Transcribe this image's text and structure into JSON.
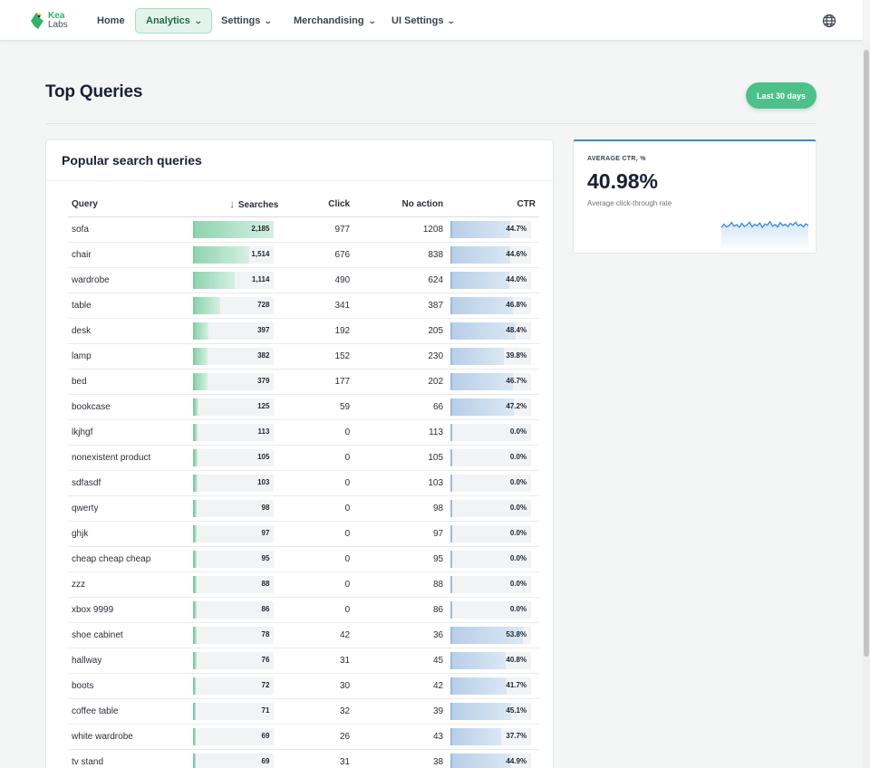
{
  "brand": {
    "line1": "Kea",
    "line2": "Labs"
  },
  "nav": {
    "home": "Home",
    "analytics": "Analytics",
    "settings": "Settings",
    "merchandising": "Merchandising",
    "ui_settings": "UI Settings"
  },
  "page": {
    "title": "Top Queries",
    "date_range": "Last 30 days"
  },
  "table_card": {
    "title": "Popular search queries",
    "headers": {
      "query": "Query",
      "searches": "Searches",
      "click": "Click",
      "no_action": "No action",
      "ctr": "CTR"
    },
    "max_searches": 2185,
    "rows": [
      {
        "query": "sofa",
        "searches": 2185,
        "searches_label": "2,185",
        "click": "977",
        "no_action": "1208",
        "ctr": 44.7,
        "ctr_label": "44.7%"
      },
      {
        "query": "chair",
        "searches": 1514,
        "searches_label": "1,514",
        "click": "676",
        "no_action": "838",
        "ctr": 44.6,
        "ctr_label": "44.6%"
      },
      {
        "query": "wardrobe",
        "searches": 1114,
        "searches_label": "1,114",
        "click": "490",
        "no_action": "624",
        "ctr": 44.0,
        "ctr_label": "44.0%"
      },
      {
        "query": "table",
        "searches": 728,
        "searches_label": "728",
        "click": "341",
        "no_action": "387",
        "ctr": 46.8,
        "ctr_label": "46.8%"
      },
      {
        "query": "desk",
        "searches": 397,
        "searches_label": "397",
        "click": "192",
        "no_action": "205",
        "ctr": 48.4,
        "ctr_label": "48.4%"
      },
      {
        "query": "lamp",
        "searches": 382,
        "searches_label": "382",
        "click": "152",
        "no_action": "230",
        "ctr": 39.8,
        "ctr_label": "39.8%"
      },
      {
        "query": "bed",
        "searches": 379,
        "searches_label": "379",
        "click": "177",
        "no_action": "202",
        "ctr": 46.7,
        "ctr_label": "46.7%"
      },
      {
        "query": "bookcase",
        "searches": 125,
        "searches_label": "125",
        "click": "59",
        "no_action": "66",
        "ctr": 47.2,
        "ctr_label": "47.2%"
      },
      {
        "query": "lkjhgf",
        "searches": 113,
        "searches_label": "113",
        "click": "0",
        "no_action": "113",
        "ctr": 0,
        "ctr_label": "0.0%"
      },
      {
        "query": "nonexistent product",
        "searches": 105,
        "searches_label": "105",
        "click": "0",
        "no_action": "105",
        "ctr": 0,
        "ctr_label": "0.0%"
      },
      {
        "query": "sdfasdf",
        "searches": 103,
        "searches_label": "103",
        "click": "0",
        "no_action": "103",
        "ctr": 0,
        "ctr_label": "0.0%"
      },
      {
        "query": "qwerty",
        "searches": 98,
        "searches_label": "98",
        "click": "0",
        "no_action": "98",
        "ctr": 0,
        "ctr_label": "0.0%"
      },
      {
        "query": "ghjk",
        "searches": 97,
        "searches_label": "97",
        "click": "0",
        "no_action": "97",
        "ctr": 0,
        "ctr_label": "0.0%"
      },
      {
        "query": "cheap cheap cheap",
        "searches": 95,
        "searches_label": "95",
        "click": "0",
        "no_action": "95",
        "ctr": 0,
        "ctr_label": "0.0%"
      },
      {
        "query": "zzz",
        "searches": 88,
        "searches_label": "88",
        "click": "0",
        "no_action": "88",
        "ctr": 0,
        "ctr_label": "0.0%"
      },
      {
        "query": "xbox 9999",
        "searches": 86,
        "searches_label": "86",
        "click": "0",
        "no_action": "86",
        "ctr": 0,
        "ctr_label": "0.0%"
      },
      {
        "query": "shoe cabinet",
        "searches": 78,
        "searches_label": "78",
        "click": "42",
        "no_action": "36",
        "ctr": 53.8,
        "ctr_label": "53.8%"
      },
      {
        "query": "hallway",
        "searches": 76,
        "searches_label": "76",
        "click": "31",
        "no_action": "45",
        "ctr": 40.8,
        "ctr_label": "40.8%"
      },
      {
        "query": "boots",
        "searches": 72,
        "searches_label": "72",
        "click": "30",
        "no_action": "42",
        "ctr": 41.7,
        "ctr_label": "41.7%"
      },
      {
        "query": "coffee table",
        "searches": 71,
        "searches_label": "71",
        "click": "32",
        "no_action": "39",
        "ctr": 45.1,
        "ctr_label": "45.1%"
      },
      {
        "query": "white wardrobe",
        "searches": 69,
        "searches_label": "69",
        "click": "26",
        "no_action": "43",
        "ctr": 37.7,
        "ctr_label": "37.7%"
      },
      {
        "query": "tv stand",
        "searches": 69,
        "searches_label": "69",
        "click": "31",
        "no_action": "38",
        "ctr": 44.9,
        "ctr_label": "44.9%"
      }
    ]
  },
  "ctr_card": {
    "label": "AVERAGE CTR, %",
    "value": "40.98%",
    "subtitle": "Average click-through rate",
    "sparkline": [
      0.45,
      0.62,
      0.48,
      0.55,
      0.7,
      0.52,
      0.6,
      0.47,
      0.66,
      0.5,
      0.58,
      0.72,
      0.49,
      0.61,
      0.54,
      0.68,
      0.46,
      0.63,
      0.57,
      0.75,
      0.52,
      0.6,
      0.48,
      0.69,
      0.55,
      0.62,
      0.5,
      0.66,
      0.58,
      0.72,
      0.53,
      0.61,
      0.49,
      0.64,
      0.56
    ]
  },
  "colors": {
    "accent": "#4ec18a",
    "active_nav_bg": "#e3f4ec",
    "ctr_line": "#3b86d6"
  }
}
